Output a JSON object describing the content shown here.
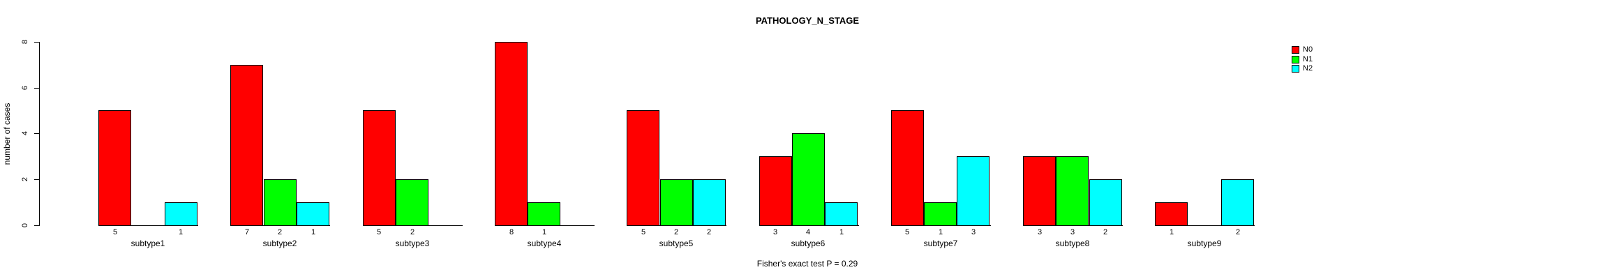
{
  "title": "PATHOLOGY_N_STAGE",
  "chart_data": {
    "type": "bar",
    "title": "PATHOLOGY_N_STAGE",
    "ylabel": "number of cases",
    "xlabel": "",
    "ylim": [
      0,
      8
    ],
    "yticks": [
      0,
      2,
      4,
      6,
      8
    ],
    "grid": false,
    "legend_position": "top-right",
    "bar_value_labels": "each nonzero bar value printed below its bar",
    "categories": [
      "subtype1",
      "subtype2",
      "subtype3",
      "subtype4",
      "subtype5",
      "subtype6",
      "subtype7",
      "subtype8",
      "subtype9"
    ],
    "series": [
      {
        "name": "N0",
        "color": "#ff0000",
        "values": [
          5,
          7,
          5,
          8,
          5,
          3,
          5,
          3,
          1
        ]
      },
      {
        "name": "N1",
        "color": "#00ff00",
        "values": [
          0,
          2,
          2,
          1,
          2,
          4,
          1,
          3,
          0
        ]
      },
      {
        "name": "N2",
        "color": "#00ffff",
        "values": [
          1,
          1,
          0,
          0,
          2,
          1,
          3,
          2,
          2
        ]
      }
    ],
    "annotation": "Fisher's exact test P = 0.29"
  }
}
